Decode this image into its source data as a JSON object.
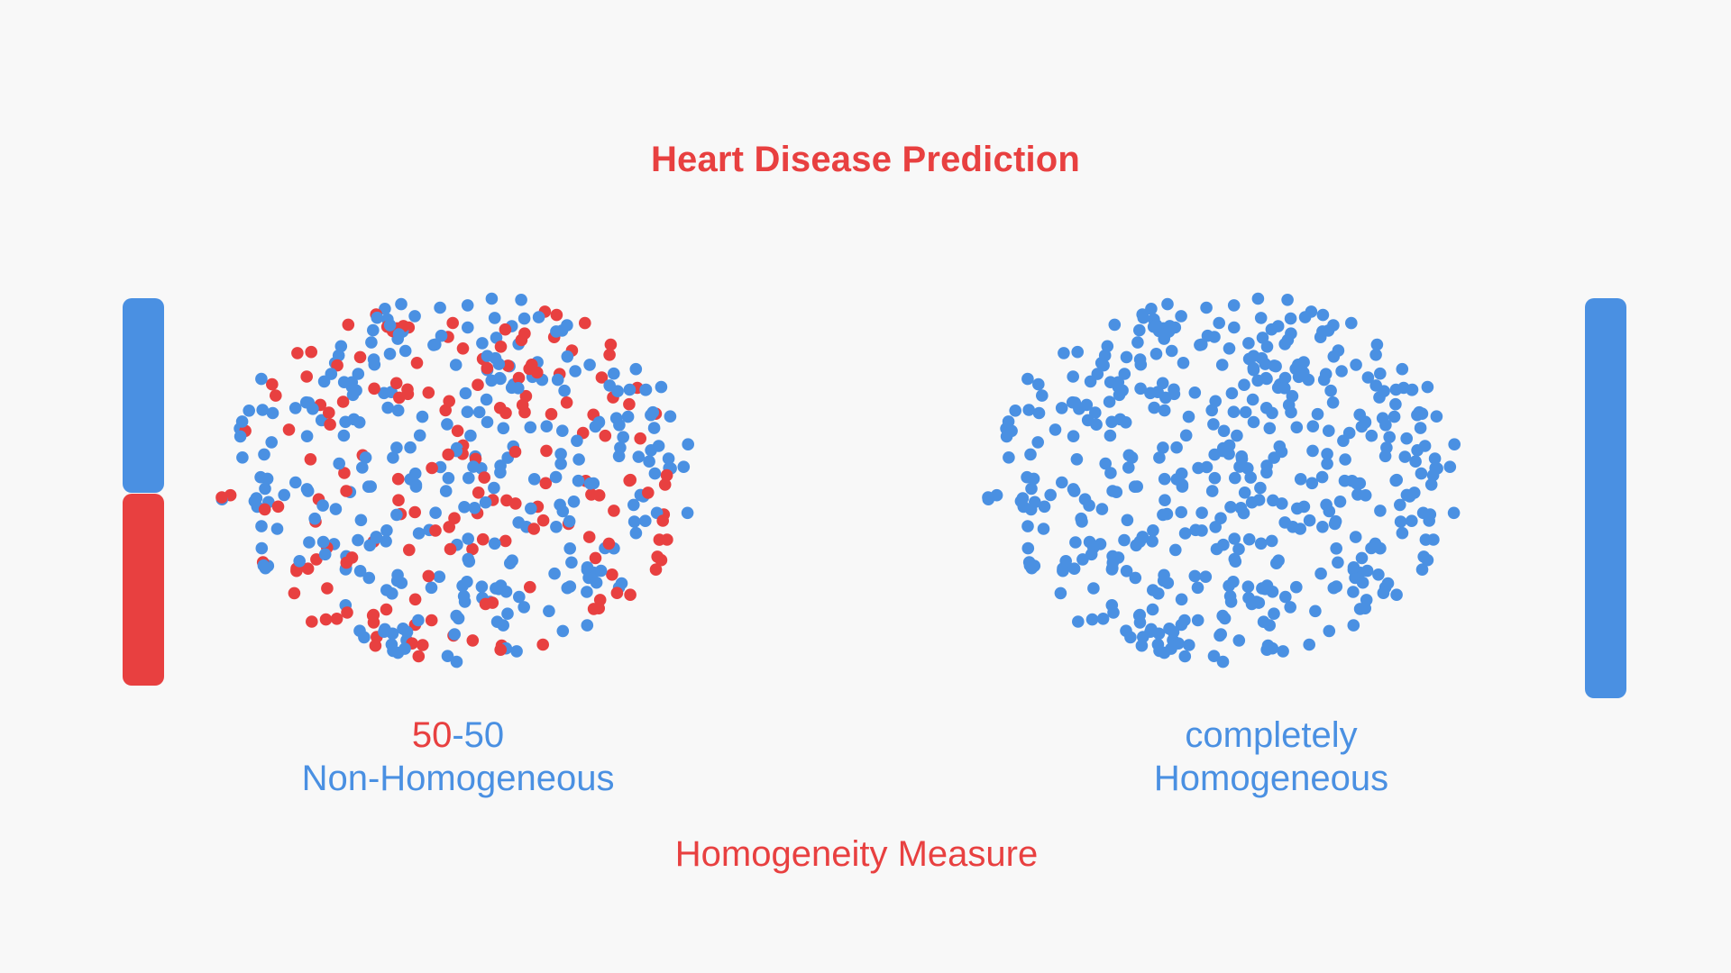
{
  "title": "Heart Disease Prediction",
  "left_group": {
    "label_part1": "50",
    "label_dash": "-",
    "label_part2": "50",
    "label_line2": "Non-Homogeneous",
    "composition": {
      "blue_fraction": 0.5,
      "red_fraction": 0.5
    }
  },
  "right_group": {
    "label_line1": "completely",
    "label_line2": "Homogeneous",
    "composition": {
      "blue_fraction": 1.0,
      "red_fraction": 0.0
    }
  },
  "footer": "Homogeneity Measure",
  "colors": {
    "blue": "#4a90e2",
    "red": "#e84040",
    "background": "#f8f8f8"
  }
}
